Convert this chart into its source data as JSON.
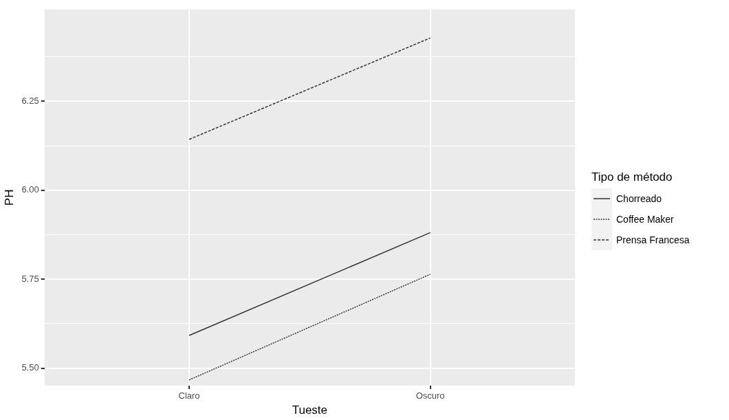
{
  "chart_data": {
    "type": "line",
    "xlabel": "Tueste",
    "ylabel": "PH",
    "categories": [
      "Claro",
      "Oscuro"
    ],
    "ylim": [
      5.451,
      6.508
    ],
    "yticks": [
      {
        "value": 5.5,
        "label": "5.50"
      },
      {
        "value": 5.625,
        "label": null
      },
      5.75,
      {
        "value": 5.875,
        "label": null
      },
      {
        "value": 6,
        "label": "6.00"
      },
      {
        "value": 6.125,
        "label": null
      },
      6.25,
      {
        "value": 6.375,
        "label": null
      }
    ],
    "grid": true,
    "legend": "right",
    "legend_title": "Tipo de método",
    "marker": "none",
    "series": [
      {
        "name": "Chorreado",
        "color": "#333333",
        "line_style": "solid",
        "values": [
          5.592,
          5.881
        ]
      },
      {
        "name": "Coffee Maker",
        "color": "#333333",
        "line_style": "dotted",
        "values": [
          5.467,
          5.764
        ]
      },
      {
        "name": "Prensa Francesa",
        "color": "#333333",
        "line_style": "dashed",
        "values": [
          6.143,
          6.428
        ]
      }
    ]
  }
}
